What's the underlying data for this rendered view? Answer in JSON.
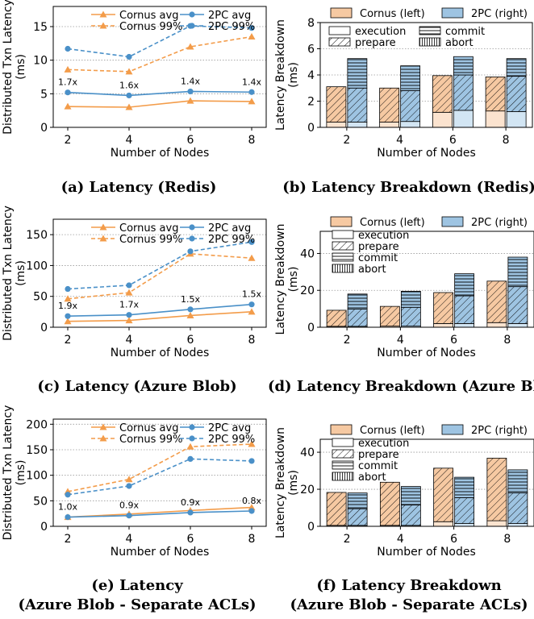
{
  "figure": {
    "panels": [
      {
        "caption": [
          "(a) Latency (Redis)"
        ],
        "ylabel": [
          "Distributed Txn Latency",
          "(ms)"
        ],
        "xlabel": "Number of Nodes",
        "legend": [
          "Cornus avg",
          "Cornus 99%",
          "2PC avg",
          "2PC 99%"
        ]
      },
      {
        "caption": [
          "(b) Latency Breakdown (Redis)"
        ],
        "ylabel": [
          "Latency Breakdown",
          "(ms)"
        ],
        "xlabel": "Number of Nodes",
        "legend_top": [
          "Cornus (left)",
          "2PC (right)"
        ],
        "legend_inner": [
          "execution",
          "commit",
          "prepare",
          "abort"
        ]
      },
      {
        "caption": [
          "(c) Latency (Azure Blob)"
        ],
        "ylabel": [
          "Distributed Txn Latency",
          "(ms)"
        ],
        "xlabel": "Number of Nodes",
        "legend": [
          "Cornus avg",
          "Cornus 99%",
          "2PC avg",
          "2PC 99%"
        ]
      },
      {
        "caption": [
          "(d) Latency Breakdown (Azure Blob"
        ],
        "ylabel": [
          "Latency Breakdown",
          "(ms)"
        ],
        "xlabel": "Number of Nodes",
        "legend_top": [
          "Cornus (left)",
          "2PC (right)"
        ],
        "legend_inner": [
          "execution",
          "prepare",
          "commit",
          "abort"
        ]
      },
      {
        "caption": [
          "(e) Latency",
          "(Azure Blob - Separate ACLs)"
        ],
        "ylabel": [
          "Distributed Txn Latency",
          "(ms)"
        ],
        "xlabel": "Number of Nodes",
        "legend": [
          "Cornus avg",
          "Cornus 99%",
          "2PC avg",
          "2PC 99%"
        ]
      },
      {
        "caption": [
          "(f) Latency Breakdown",
          "(Azure Blob - Separate ACLs)"
        ],
        "ylabel": [
          "Latency Breakdown",
          "(ms)"
        ],
        "xlabel": "Number of Nodes",
        "legend_top": [
          "Cornus (left)",
          "2PC (right)"
        ],
        "legend_inner": [
          "execution",
          "prepare",
          "commit",
          "abort"
        ]
      }
    ],
    "colors": {
      "cornus_line": "#f39c4a",
      "twopc_line": "#4a90c8",
      "cornus_fill": "#f6c9a2",
      "cornus_fill_light": "#fbe3cf",
      "twopc_fill": "#9ec4e2",
      "twopc_fill_light": "#d2e5f3",
      "grid": "#999999"
    }
  },
  "chart_data": [
    {
      "type": "line",
      "x": [
        2,
        4,
        6,
        8
      ],
      "xlabel": "Number of Nodes",
      "ylabel": "Distributed Txn Latency (ms)",
      "ylim": [
        0,
        18
      ],
      "yticks": [
        0,
        5,
        10,
        15
      ],
      "grid": "horizontal dotted",
      "legend_placement": "top",
      "series": [
        {
          "name": "Cornus avg",
          "values": [
            3.1,
            3.0,
            3.95,
            3.85
          ]
        },
        {
          "name": "Cornus 99%",
          "values": [
            8.6,
            8.3,
            12.0,
            13.5
          ]
        },
        {
          "name": "2PC avg",
          "values": [
            5.2,
            4.75,
            5.35,
            5.25
          ]
        },
        {
          "name": "2PC 99%",
          "values": [
            11.7,
            10.5,
            15.1,
            14.8
          ]
        }
      ],
      "annotations": [
        "1.7x",
        "1.6x",
        "1.4x",
        "1.4x"
      ]
    },
    {
      "type": "bar",
      "stacked": true,
      "categories": [
        "2",
        "4",
        "6",
        "8"
      ],
      "xlabel": "Number of Nodes",
      "ylabel": "Latency Breakdown (ms)",
      "ylim": [
        0,
        8
      ],
      "yticks": [
        0,
        2,
        4,
        6,
        8
      ],
      "stack_order": [
        "execution",
        "prepare",
        "commit",
        "abort"
      ],
      "series": [
        {
          "name": "Cornus (left)",
          "stacks": [
            {
              "execution": 0.4,
              "prepare": 2.7,
              "commit": 0,
              "abort": 0
            },
            {
              "execution": 0.4,
              "prepare": 2.6,
              "commit": 0,
              "abort": 0
            },
            {
              "execution": 1.15,
              "prepare": 2.8,
              "commit": 0,
              "abort": 0
            },
            {
              "execution": 1.25,
              "prepare": 2.6,
              "commit": 0,
              "abort": 0
            }
          ]
        },
        {
          "name": "2PC (right)",
          "stacks": [
            {
              "execution": 0.4,
              "prepare": 2.6,
              "commit": 2.25,
              "abort": 0
            },
            {
              "execution": 0.45,
              "prepare": 2.35,
              "commit": 1.9,
              "abort": 0
            },
            {
              "execution": 1.3,
              "prepare": 2.7,
              "commit": 1.4,
              "abort": 0
            },
            {
              "execution": 1.2,
              "prepare": 2.7,
              "commit": 1.35,
              "abort": 0
            }
          ]
        }
      ]
    },
    {
      "type": "line",
      "x": [
        2,
        4,
        6,
        8
      ],
      "xlabel": "Number of Nodes",
      "ylabel": "Distributed Txn Latency (ms)",
      "ylim": [
        0,
        175
      ],
      "yticks": [
        0,
        50,
        100,
        150
      ],
      "grid": "horizontal dotted",
      "legend_placement": "top",
      "series": [
        {
          "name": "Cornus avg",
          "values": [
            9.5,
            11,
            19,
            25
          ]
        },
        {
          "name": "Cornus 99%",
          "values": [
            46,
            56,
            119,
            112
          ]
        },
        {
          "name": "2PC avg",
          "values": [
            18,
            20,
            29,
            37
          ]
        },
        {
          "name": "2PC 99%",
          "values": [
            62,
            68,
            123,
            138
          ]
        }
      ],
      "annotations": [
        "1.9x",
        "1.7x",
        "1.5x",
        "1.5x"
      ]
    },
    {
      "type": "bar",
      "stacked": true,
      "categories": [
        "2",
        "4",
        "6",
        "8"
      ],
      "xlabel": "Number of Nodes",
      "ylabel": "Latency Breakdown (ms)",
      "ylim": [
        0,
        52
      ],
      "yticks": [
        0,
        20,
        40
      ],
      "stack_order": [
        "execution",
        "prepare",
        "commit",
        "abort"
      ],
      "series": [
        {
          "name": "Cornus (left)",
          "stacks": [
            {
              "execution": 0.5,
              "prepare": 8.7,
              "commit": 0,
              "abort": 0
            },
            {
              "execution": 0.6,
              "prepare": 10.7,
              "commit": 0,
              "abort": 0
            },
            {
              "execution": 2.0,
              "prepare": 16.8,
              "commit": 0,
              "abort": 0
            },
            {
              "execution": 2.5,
              "prepare": 22.5,
              "commit": 0,
              "abort": 0
            }
          ]
        },
        {
          "name": "2PC (right)",
          "stacks": [
            {
              "execution": 0.5,
              "prepare": 9.3,
              "commit": 8.2,
              "abort": 0
            },
            {
              "execution": 0.6,
              "prepare": 10.2,
              "commit": 8.7,
              "abort": 0
            },
            {
              "execution": 2.0,
              "prepare": 15.0,
              "commit": 12.0,
              "abort": 0
            },
            {
              "execution": 2.0,
              "prepare": 20.0,
              "commit": 16.0,
              "abort": 0
            }
          ]
        }
      ]
    },
    {
      "type": "line",
      "x": [
        2,
        4,
        6,
        8
      ],
      "xlabel": "Number of Nodes",
      "ylabel": "Distributed Txn Latency (ms)",
      "ylim": [
        0,
        210
      ],
      "yticks": [
        0,
        50,
        100,
        150,
        200
      ],
      "grid": "horizontal dotted",
      "legend_placement": "top",
      "series": [
        {
          "name": "Cornus avg",
          "values": [
            18,
            24,
            31,
            37
          ]
        },
        {
          "name": "Cornus 99%",
          "values": [
            68,
            92,
            156,
            161
          ]
        },
        {
          "name": "2PC avg",
          "values": [
            18,
            21,
            27,
            30
          ]
        },
        {
          "name": "2PC 99%",
          "values": [
            62,
            79,
            132,
            128
          ]
        }
      ],
      "annotations": [
        "1.0x",
        "0.9x",
        "0.9x",
        "0.8x"
      ]
    },
    {
      "type": "bar",
      "stacked": true,
      "categories": [
        "2",
        "4",
        "6",
        "8"
      ],
      "xlabel": "Number of Nodes",
      "ylabel": "Latency Breakdown (ms)",
      "ylim": [
        0,
        47
      ],
      "yticks": [
        0,
        20,
        40
      ],
      "stack_order": [
        "execution",
        "prepare",
        "commit",
        "abort"
      ],
      "series": [
        {
          "name": "Cornus (left)",
          "stacks": [
            {
              "execution": 0.5,
              "prepare": 17.8,
              "commit": 0,
              "abort": 0
            },
            {
              "execution": 0.5,
              "prepare": 23.3,
              "commit": 0,
              "abort": 0
            },
            {
              "execution": 2.5,
              "prepare": 28.9,
              "commit": 0,
              "abort": 0
            },
            {
              "execution": 3.0,
              "prepare": 33.8,
              "commit": 0,
              "abort": 0
            }
          ]
        },
        {
          "name": "2PC (right)",
          "stacks": [
            {
              "execution": 0.5,
              "prepare": 9.0,
              "commit": 8.5,
              "abort": 0
            },
            {
              "execution": 0.5,
              "prepare": 11.0,
              "commit": 10.0,
              "abort": 0
            },
            {
              "execution": 1.5,
              "prepare": 14.0,
              "commit": 11.0,
              "abort": 0
            },
            {
              "execution": 1.5,
              "prepare": 16.5,
              "commit": 12.5,
              "abort": 0
            }
          ]
        }
      ]
    }
  ]
}
